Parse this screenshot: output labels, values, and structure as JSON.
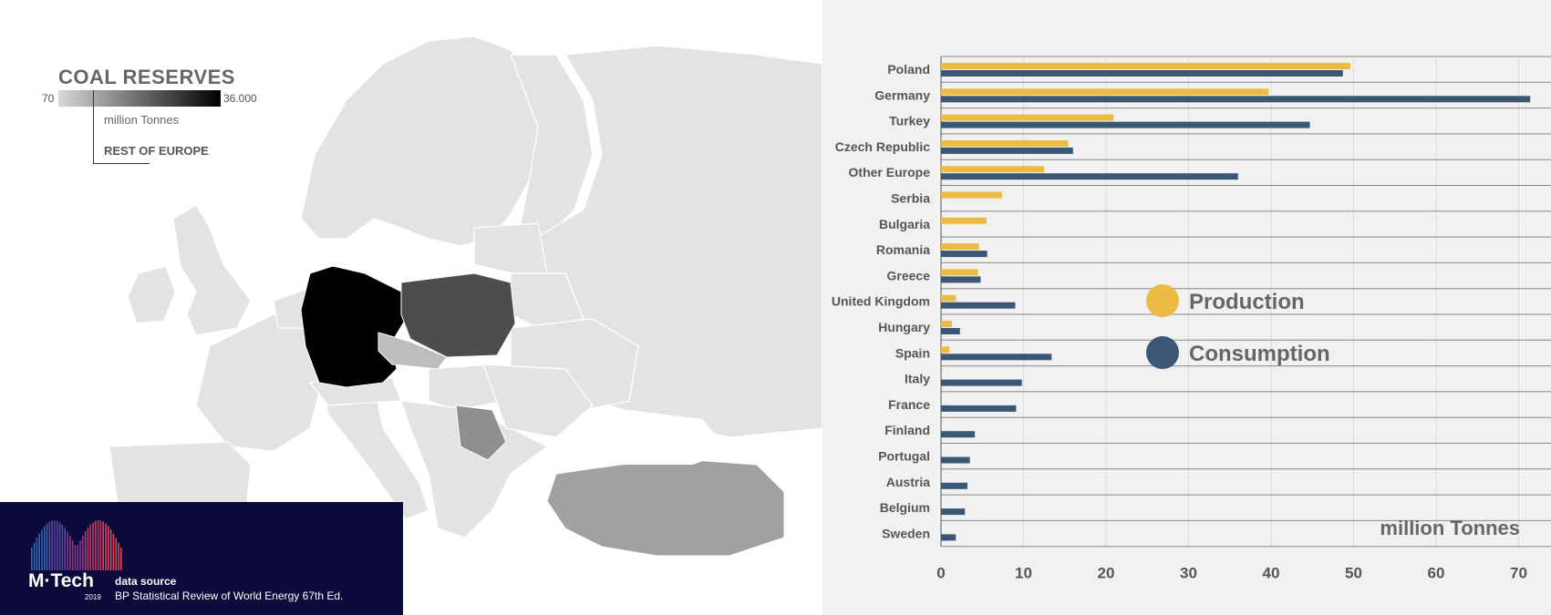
{
  "map": {
    "title": "COAL RESERVES",
    "legend_min": "70",
    "legend_max": "36.000",
    "unit": "million Tonnes",
    "rest_label": "REST OF EUROPE",
    "colors": {
      "background_country": "#e3e3e3",
      "germany": "#000000",
      "poland": "#4d4d4d",
      "turkey": "#a1a1a1",
      "serbia": "#8f8f8f",
      "czech": "#bdbdbd"
    }
  },
  "source": {
    "logo": "M·Tech",
    "year": "2019",
    "label": "data source",
    "text": "BP Statistical Review of World Energy 67th Ed."
  },
  "chart_data": {
    "type": "bar",
    "orientation": "horizontal",
    "categories": [
      "Poland",
      "Germany",
      "Turkey",
      "Czech Republic",
      "Other Europe",
      "Serbia",
      "Bulgaria",
      "Romania",
      "Greece",
      "United Kingdom",
      "Hungary",
      "Spain",
      "Italy",
      "France",
      "Finland",
      "Portugal",
      "Austria",
      "Belgium",
      "Sweden"
    ],
    "series": [
      {
        "name": "Production",
        "color": "#ecbb44",
        "values": [
          49.6,
          39.7,
          20.9,
          15.4,
          12.5,
          7.4,
          5.5,
          4.6,
          4.5,
          1.8,
          1.3,
          1.0,
          null,
          null,
          null,
          null,
          null,
          null,
          null
        ]
      },
      {
        "name": "Consumption",
        "color": "#3a5775",
        "values": [
          48.7,
          71.4,
          44.7,
          16.0,
          36.0,
          null,
          null,
          5.6,
          4.8,
          9.0,
          2.3,
          13.4,
          9.8,
          9.1,
          4.1,
          3.5,
          3.2,
          2.9,
          1.8
        ]
      }
    ],
    "xticks": [
      "0",
      "10",
      "20",
      "30",
      "40",
      "50",
      "60",
      "70"
    ],
    "xlim": [
      0,
      72.5
    ],
    "unit_label": "million Tonnes"
  }
}
